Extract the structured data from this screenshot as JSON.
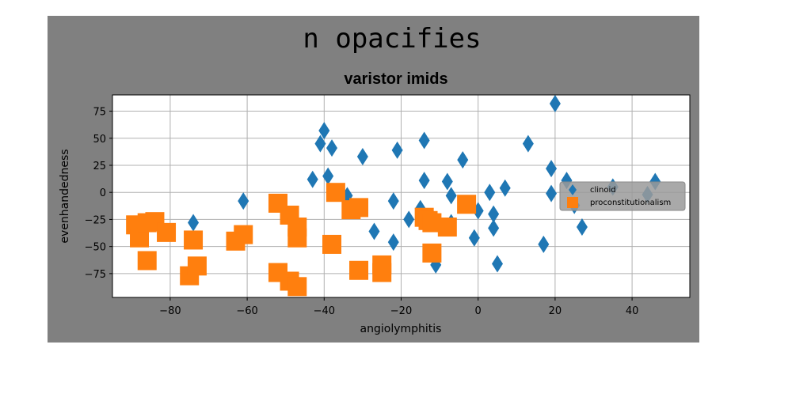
{
  "chart_data": {
    "type": "scatter",
    "title": "n opacifies",
    "subtitle": "varistor imids",
    "xlabel": "angiolymphitis",
    "ylabel": "evenhandedness",
    "xlim": [
      -95,
      55
    ],
    "ylim": [
      -97,
      90
    ],
    "xticks": [
      -80,
      -60,
      -40,
      -20,
      0,
      20,
      40
    ],
    "xtick_labels": [
      "−80",
      "−60",
      "−40",
      "−20",
      "0",
      "20",
      "40"
    ],
    "yticks": [
      75,
      50,
      25,
      0,
      -25,
      -50,
      -75
    ],
    "ytick_labels": [
      "75",
      "50",
      "25",
      "0",
      "−25",
      "−50",
      "−75"
    ],
    "grid": true,
    "legend_position": "center-right",
    "colors": {
      "figure_background": "#808080",
      "plot_background": "#ffffff",
      "grid": "#b0b0b0",
      "legend_background": "#9a9a9a"
    },
    "series": [
      {
        "name": "clinoid",
        "marker": "diamond",
        "color": "#1f77b4",
        "points": [
          [
            -74,
            -28
          ],
          [
            -61,
            -8
          ],
          [
            -43,
            12
          ],
          [
            -41,
            45
          ],
          [
            -40,
            57
          ],
          [
            -39,
            15
          ],
          [
            -38,
            41
          ],
          [
            -34,
            -3
          ],
          [
            -30,
            33
          ],
          [
            -27,
            -36
          ],
          [
            -22,
            -8
          ],
          [
            -22,
            -46
          ],
          [
            -21,
            39
          ],
          [
            -18,
            -25
          ],
          [
            -15,
            -15
          ],
          [
            -14,
            48
          ],
          [
            -14,
            11
          ],
          [
            -11,
            -67
          ],
          [
            -8,
            10
          ],
          [
            -7,
            -3
          ],
          [
            -7,
            -28
          ],
          [
            -4,
            30
          ],
          [
            -1,
            -42
          ],
          [
            0,
            -17
          ],
          [
            3,
            0
          ],
          [
            4,
            -20
          ],
          [
            4,
            -33
          ],
          [
            5,
            -66
          ],
          [
            7,
            4
          ],
          [
            13,
            45
          ],
          [
            17,
            -48
          ],
          [
            19,
            22
          ],
          [
            19,
            -1
          ],
          [
            20,
            82
          ],
          [
            23,
            11
          ],
          [
            25,
            -12
          ],
          [
            27,
            -32
          ],
          [
            35,
            5
          ],
          [
            44,
            -2
          ],
          [
            46,
            10
          ]
        ]
      },
      {
        "name": "proconstitutionalism",
        "marker": "square",
        "color": "#ff7f0e",
        "points": [
          [
            -89,
            -30
          ],
          [
            -88,
            -42
          ],
          [
            -86,
            -63
          ],
          [
            -86,
            -28
          ],
          [
            -84,
            -27
          ],
          [
            -81,
            -37
          ],
          [
            -75,
            -77
          ],
          [
            -74,
            -44
          ],
          [
            -73,
            -68
          ],
          [
            -63,
            -45
          ],
          [
            -61,
            -39
          ],
          [
            -52,
            -10
          ],
          [
            -52,
            -74
          ],
          [
            -49,
            -21
          ],
          [
            -49,
            -82
          ],
          [
            -47,
            -87
          ],
          [
            -47,
            -32
          ],
          [
            -47,
            -42
          ],
          [
            -38,
            -48
          ],
          [
            -37,
            0
          ],
          [
            -33,
            -16
          ],
          [
            -31,
            -14
          ],
          [
            -31,
            -72
          ],
          [
            -25,
            -67
          ],
          [
            -25,
            -74
          ],
          [
            -14,
            -23
          ],
          [
            -13,
            -26
          ],
          [
            -12,
            -28
          ],
          [
            -12,
            -56
          ],
          [
            -8,
            -32
          ],
          [
            -3,
            -11
          ]
        ]
      }
    ]
  }
}
